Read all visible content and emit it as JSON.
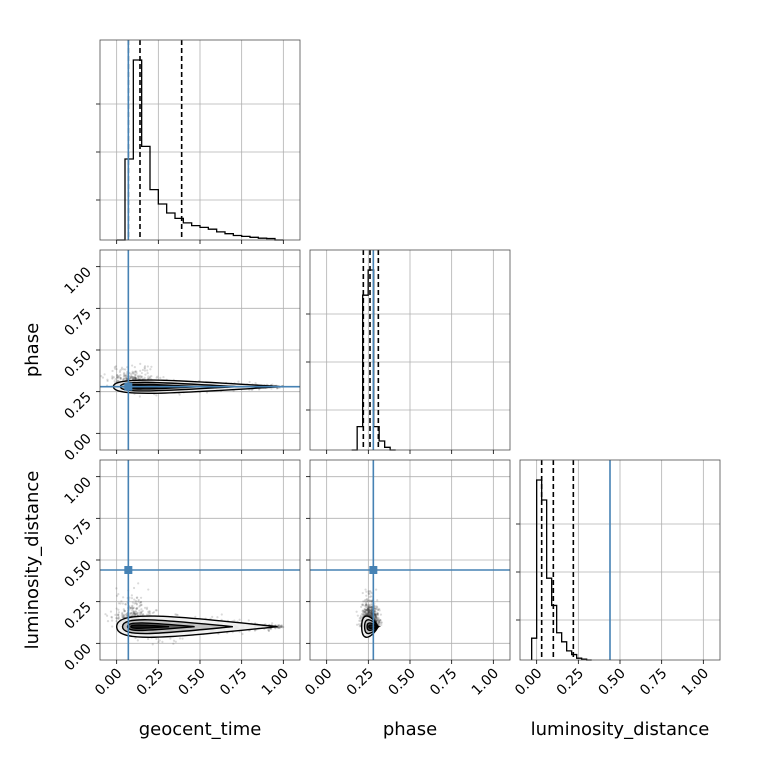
{
  "chart_data": {
    "type": "corner",
    "parameters": [
      "geocent_time",
      "phase",
      "luminosity_distance"
    ],
    "axis_range": [
      -0.1,
      1.1
    ],
    "tick_values": [
      0.0,
      0.25,
      0.5,
      0.75,
      1.0
    ],
    "tick_labels": [
      "0.00",
      "0.25",
      "0.50",
      "0.75",
      "1.00"
    ],
    "truth_values": {
      "geocent_time": 0.07,
      "phase": 0.28,
      "luminosity_distance": 0.44
    },
    "truth_color": "#4682b4",
    "quantiles": {
      "geocent_time": [
        0.07,
        0.14,
        0.39
      ],
      "phase": [
        0.22,
        0.26,
        0.31
      ],
      "luminosity_distance": [
        0.03,
        0.1,
        0.22
      ]
    },
    "histograms": {
      "geocent_time": {
        "bin_start": 0.0,
        "bin_width": 0.05,
        "counts": [
          0.0,
          0.45,
          1.0,
          0.52,
          0.28,
          0.2,
          0.15,
          0.12,
          0.095,
          0.08,
          0.07,
          0.06,
          0.045,
          0.035,
          0.025,
          0.02,
          0.015,
          0.01,
          0.008,
          0.0
        ]
      },
      "phase": {
        "bin_start": 0.15,
        "bin_width": 0.033,
        "counts": [
          0.0,
          0.13,
          0.86,
          1.0,
          0.13,
          0.05,
          0.015,
          0.0
        ]
      },
      "luminosity_distance": {
        "bin_start": -0.03,
        "bin_width": 0.03,
        "counts": [
          0.12,
          0.99,
          0.88,
          0.45,
          0.3,
          0.15,
          0.1,
          0.05,
          0.03,
          0.01,
          0.005,
          0.0
        ]
      }
    },
    "scatter_panels": [
      {
        "x": "geocent_time",
        "y": "phase",
        "center": [
          0.1,
          0.28
        ],
        "spread": [
          0.12,
          0.05
        ],
        "tail_to": 1.0
      },
      {
        "x": "geocent_time",
        "y": "luminosity_distance",
        "center": [
          0.1,
          0.1
        ],
        "spread": [
          0.1,
          0.08
        ],
        "tail_to": 1.0
      },
      {
        "x": "phase",
        "y": "luminosity_distance",
        "center": [
          0.26,
          0.1
        ],
        "spread": [
          0.05,
          0.08
        ],
        "tail_to": null
      }
    ]
  }
}
